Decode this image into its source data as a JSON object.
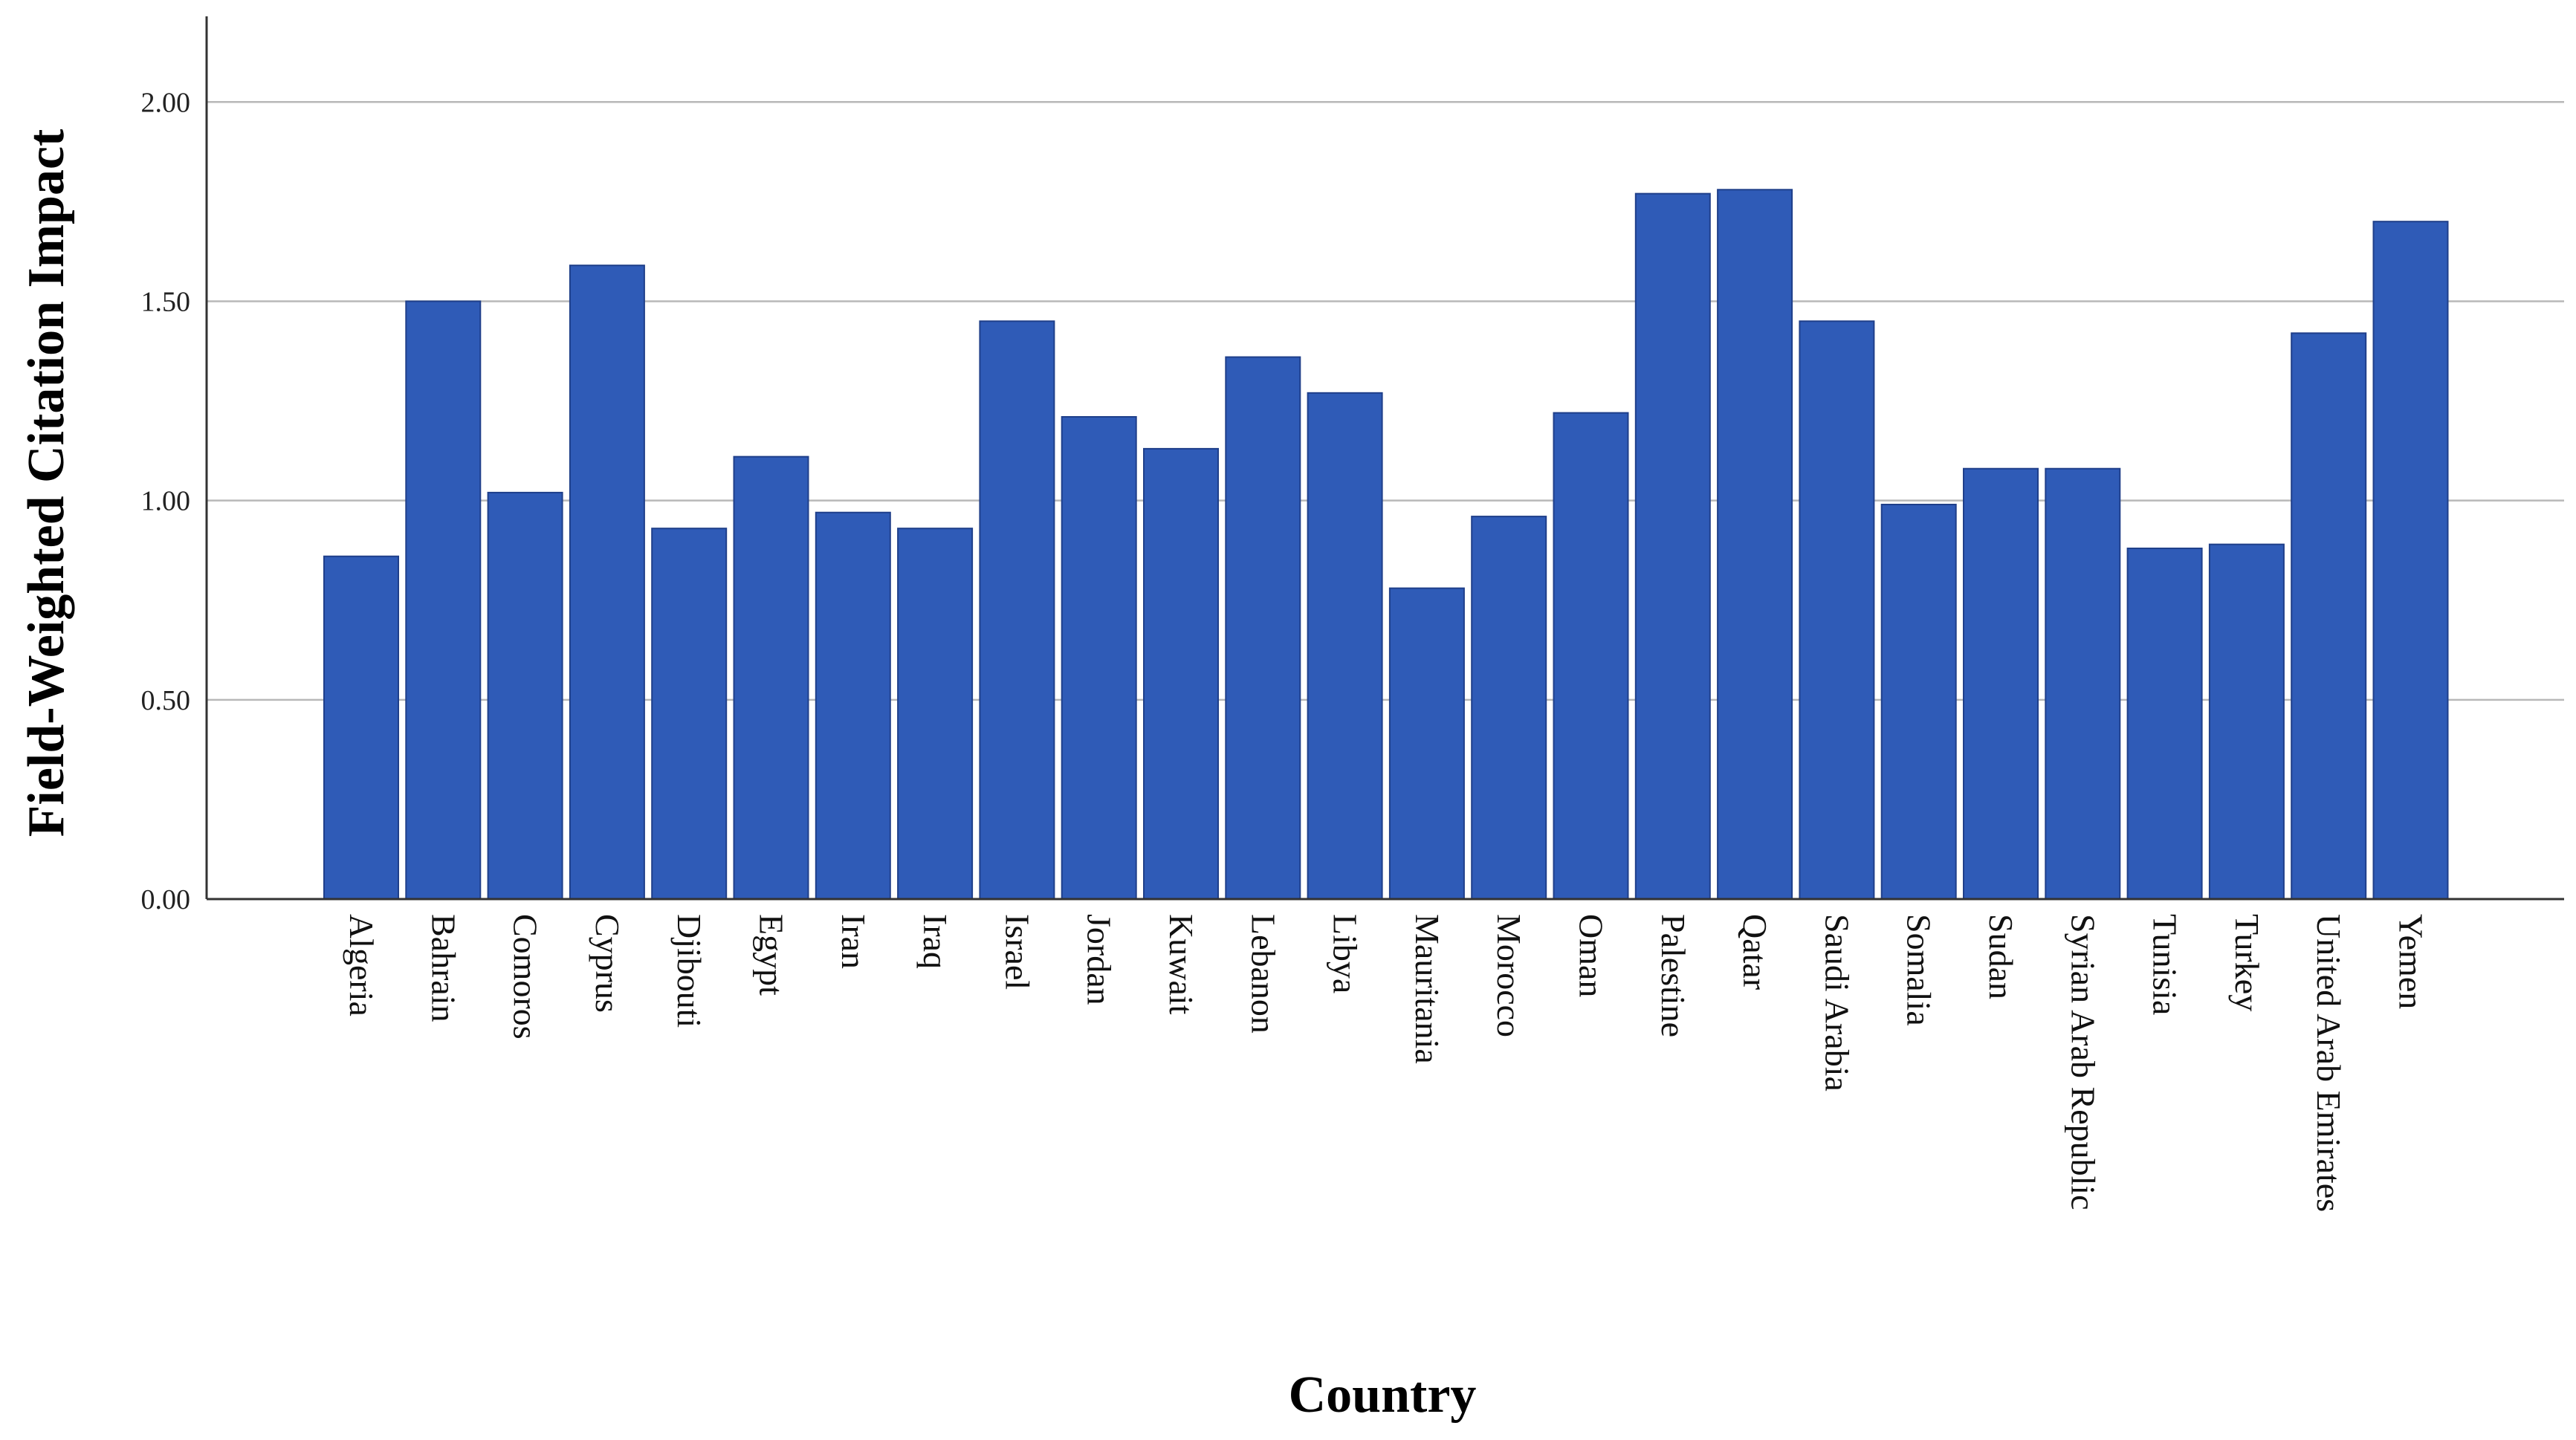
{
  "chart_data": {
    "type": "bar",
    "xlabel": "Country",
    "ylabel": "Field-Weighted Citation Impact",
    "ylim": [
      0,
      2.2
    ],
    "yticks": [
      "0.00",
      "0.50",
      "1.00",
      "1.50",
      "2.00"
    ],
    "ytick_values": [
      0,
      0.5,
      1.0,
      1.5,
      2.0
    ],
    "grid": true,
    "bar_color": "#2f5bb7",
    "categories": [
      "Algeria",
      "Bahrain",
      "Comoros",
      "Cyprus",
      "Djibouti",
      "Egypt",
      "Iran",
      "Iraq",
      "Israel",
      "Jordan",
      "Kuwait",
      "Lebanon",
      "Libya",
      "Mauritania",
      "Morocco",
      "Oman",
      "Palestine",
      "Qatar",
      "Saudi Arabia",
      "Somalia",
      "Sudan",
      "Syrian Arab Republic",
      "Tunisia",
      "Turkey",
      "United Arab Emirates",
      "Yemen"
    ],
    "values": [
      0.86,
      1.5,
      1.02,
      1.59,
      0.93,
      1.11,
      0.97,
      0.93,
      1.45,
      1.21,
      1.13,
      1.36,
      1.27,
      0.78,
      0.96,
      1.22,
      1.77,
      1.78,
      1.45,
      0.99,
      1.08,
      1.08,
      0.88,
      0.89,
      1.42,
      1.7
    ]
  }
}
